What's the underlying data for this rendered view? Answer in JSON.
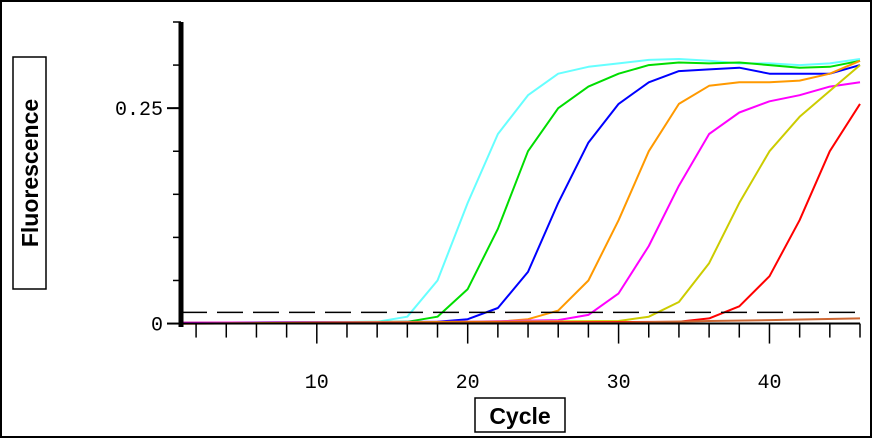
{
  "chart_data": {
    "type": "line",
    "title": "",
    "xlabel": "Cycle",
    "ylabel": "Fluorescence",
    "xlim": [
      1,
      46
    ],
    "ylim": [
      -0.004,
      0.35
    ],
    "x_ticks": [
      10,
      20,
      30,
      40
    ],
    "x_tick_labels": [
      "10",
      "20",
      "30",
      "40"
    ],
    "y_ticks": [
      0,
      0.25
    ],
    "y_tick_labels": [
      "0",
      "0.25"
    ],
    "threshold": 0.013,
    "grid": false,
    "legend": "none",
    "series": [
      {
        "color": "#66ffff",
        "points": [
          [
            1,
            0.001
          ],
          [
            14,
            0.002
          ],
          [
            16,
            0.008
          ],
          [
            18,
            0.05
          ],
          [
            20,
            0.14
          ],
          [
            22,
            0.22
          ],
          [
            24,
            0.265
          ],
          [
            26,
            0.29
          ],
          [
            28,
            0.298
          ],
          [
            30,
            0.302
          ],
          [
            32,
            0.306
          ],
          [
            34,
            0.307
          ],
          [
            36,
            0.305
          ],
          [
            38,
            0.302
          ],
          [
            40,
            0.302
          ],
          [
            42,
            0.3
          ],
          [
            44,
            0.302
          ],
          [
            46,
            0.307
          ]
        ]
      },
      {
        "color": "#00dd00",
        "points": [
          [
            1,
            0.001
          ],
          [
            16,
            0.002
          ],
          [
            18,
            0.008
          ],
          [
            20,
            0.04
          ],
          [
            22,
            0.11
          ],
          [
            24,
            0.2
          ],
          [
            26,
            0.25
          ],
          [
            28,
            0.275
          ],
          [
            30,
            0.29
          ],
          [
            32,
            0.3
          ],
          [
            34,
            0.303
          ],
          [
            36,
            0.302
          ],
          [
            38,
            0.303
          ],
          [
            40,
            0.3
          ],
          [
            42,
            0.297
          ],
          [
            44,
            0.298
          ],
          [
            46,
            0.305
          ]
        ]
      },
      {
        "color": "#0000ff",
        "points": [
          [
            1,
            0.001
          ],
          [
            18,
            0.002
          ],
          [
            20,
            0.005
          ],
          [
            22,
            0.018
          ],
          [
            24,
            0.06
          ],
          [
            26,
            0.14
          ],
          [
            28,
            0.21
          ],
          [
            30,
            0.255
          ],
          [
            32,
            0.28
          ],
          [
            34,
            0.293
          ],
          [
            36,
            0.295
          ],
          [
            38,
            0.297
          ],
          [
            40,
            0.29
          ],
          [
            42,
            0.29
          ],
          [
            44,
            0.29
          ],
          [
            46,
            0.3
          ]
        ]
      },
      {
        "color": "#ff9900",
        "points": [
          [
            1,
            0.001
          ],
          [
            22,
            0.002
          ],
          [
            24,
            0.005
          ],
          [
            26,
            0.015
          ],
          [
            28,
            0.05
          ],
          [
            30,
            0.12
          ],
          [
            32,
            0.2
          ],
          [
            34,
            0.255
          ],
          [
            36,
            0.276
          ],
          [
            38,
            0.28
          ],
          [
            40,
            0.28
          ],
          [
            42,
            0.282
          ],
          [
            44,
            0.29
          ],
          [
            46,
            0.305
          ]
        ]
      },
      {
        "color": "#ff00ff",
        "points": [
          [
            1,
            0.001
          ],
          [
            20,
            0.002
          ],
          [
            26,
            0.004
          ],
          [
            28,
            0.01
          ],
          [
            30,
            0.035
          ],
          [
            32,
            0.09
          ],
          [
            34,
            0.16
          ],
          [
            36,
            0.22
          ],
          [
            38,
            0.245
          ],
          [
            40,
            0.258
          ],
          [
            42,
            0.265
          ],
          [
            44,
            0.275
          ],
          [
            46,
            0.28
          ]
        ]
      },
      {
        "color": "#cccc00",
        "points": [
          [
            1,
            0.0
          ],
          [
            30,
            0.003
          ],
          [
            32,
            0.008
          ],
          [
            34,
            0.025
          ],
          [
            36,
            0.07
          ],
          [
            38,
            0.14
          ],
          [
            40,
            0.2
          ],
          [
            42,
            0.24
          ],
          [
            44,
            0.27
          ],
          [
            46,
            0.3
          ]
        ]
      },
      {
        "color": "#ff0000",
        "points": [
          [
            1,
            0.0
          ],
          [
            34,
            0.002
          ],
          [
            36,
            0.006
          ],
          [
            38,
            0.02
          ],
          [
            40,
            0.055
          ],
          [
            42,
            0.12
          ],
          [
            44,
            0.2
          ],
          [
            46,
            0.255
          ]
        ]
      },
      {
        "color": "#cc6633",
        "points": [
          [
            1,
            0.0
          ],
          [
            30,
            0.001
          ],
          [
            36,
            0.003
          ],
          [
            40,
            0.004
          ],
          [
            46,
            0.006
          ]
        ]
      }
    ]
  }
}
